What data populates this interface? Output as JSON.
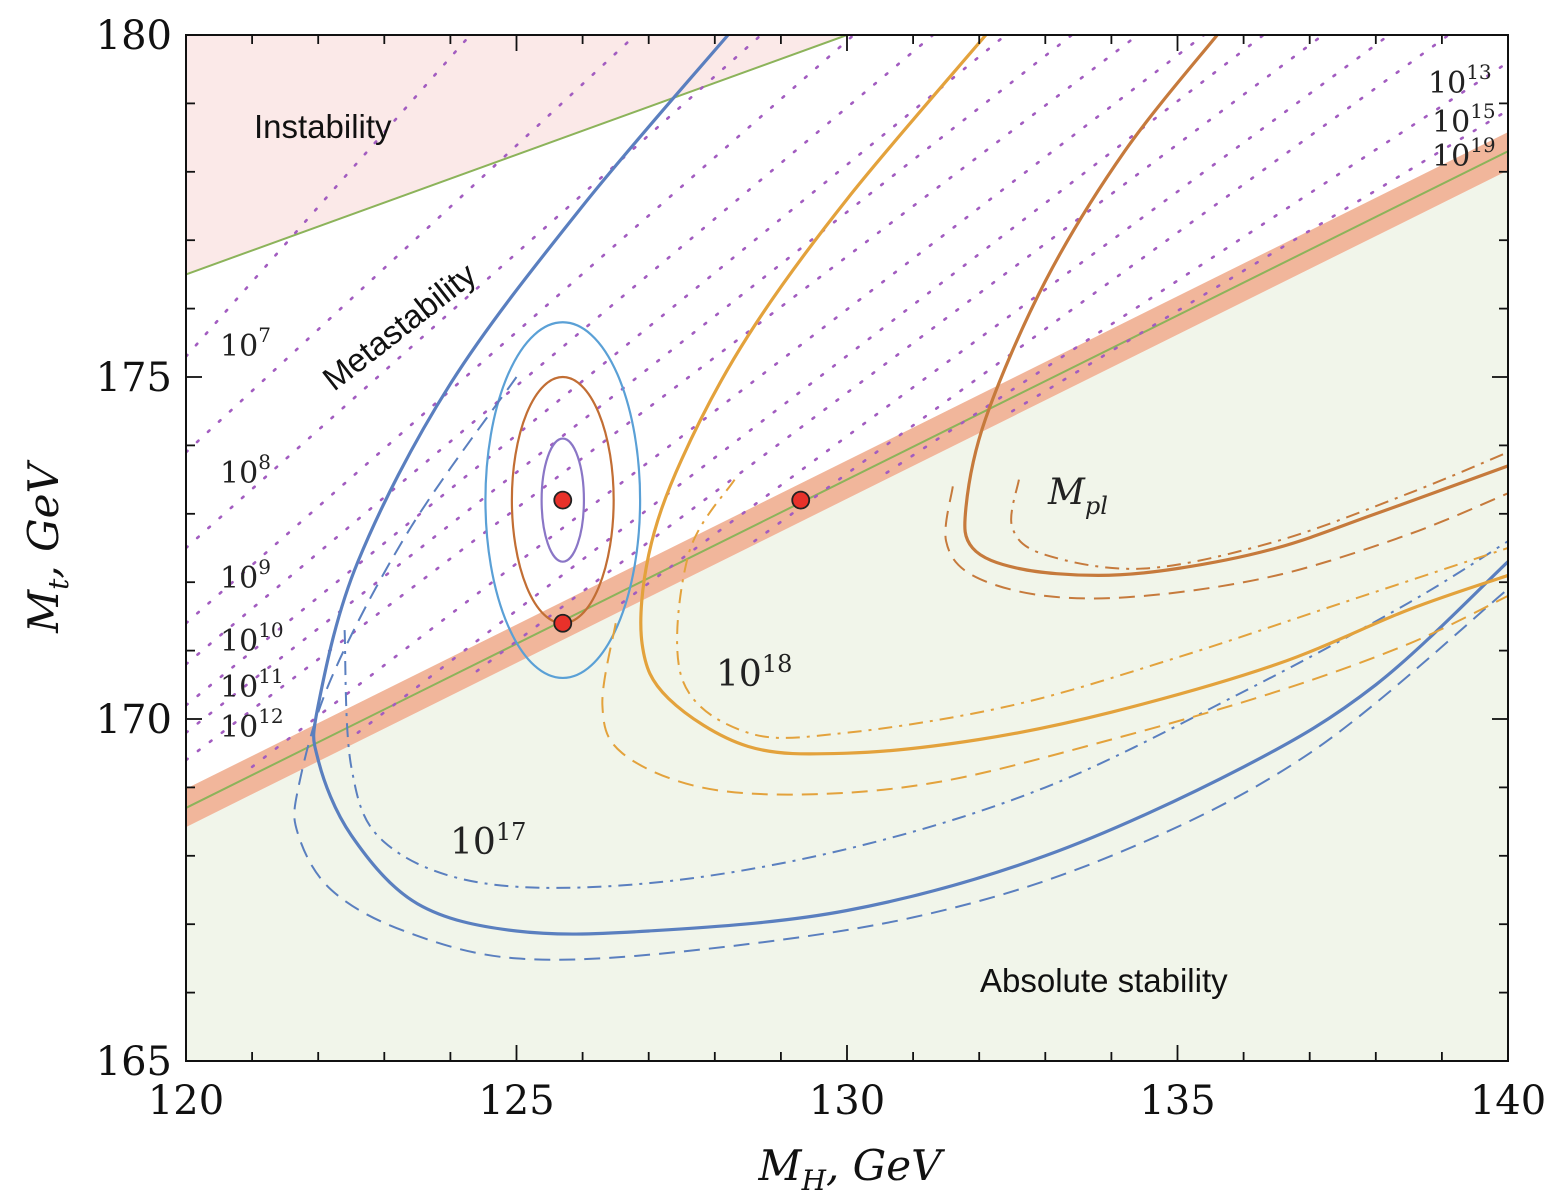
{
  "chart_data": {
    "type": "line",
    "title": "",
    "xlabel": "M_H, GeV",
    "ylabel": "M_t, GeV",
    "xlim": [
      120,
      140
    ],
    "ylim": [
      165,
      180
    ],
    "x_ticks": [
      "120",
      "125",
      "130",
      "135",
      "140"
    ],
    "y_ticks": [
      "165",
      "170",
      "175",
      "180"
    ],
    "grid": false,
    "colors": {
      "instability": "#fbe9e8",
      "stability": "#f1f5ea",
      "band": "#efa98a",
      "green": "#8cb35a",
      "purple": "#a25cc0",
      "blue": "#5a7fbf",
      "gold": "#e3a23c",
      "brown": "#c67a3c",
      "red_point": "#e8312a",
      "ellipse_outer": "#5aa0d6",
      "ellipse_middle": "#c26e34",
      "ellipse_inner": "#8a76c6"
    },
    "regions": {
      "instability": "Instability",
      "metastability": "Metastability",
      "stability": "Absolute stability"
    },
    "instability_boundary": {
      "x": [
        120,
        130
      ],
      "y": [
        176.5,
        180
      ]
    },
    "stability_band": {
      "x": [
        120,
        140
      ],
      "y": [
        168.7,
        178.3
      ],
      "half_width": 0.28
    },
    "scale_lines": [
      {
        "label": "10",
        "exp": "7",
        "x": [
          120,
          124.3
        ],
        "y": [
          175.3,
          180
        ]
      },
      {
        "label": "10",
        "exp": "8",
        "x": [
          120,
          126.8
        ],
        "y": [
          173.9,
          180
        ]
      },
      {
        "label": "10",
        "exp": "9",
        "x": [
          120,
          128.7
        ],
        "y": [
          172.5,
          180
        ]
      },
      {
        "label": "10",
        "exp": "10",
        "x": [
          120,
          130.1
        ],
        "y": [
          171.4,
          180
        ]
      },
      {
        "label": "10",
        "exp": "11",
        "x": [
          120,
          131.3
        ],
        "y": [
          170.8,
          180
        ]
      },
      {
        "label": "10",
        "exp": "12",
        "x": [
          120,
          132.4
        ],
        "y": [
          170.2,
          180
        ]
      },
      {
        "label": "",
        "exp": "",
        "x": [
          120,
          133.4
        ],
        "y": [
          169.8,
          180
        ]
      },
      {
        "label": "",
        "exp": "",
        "x": [
          120,
          134.4
        ],
        "y": [
          169.4,
          180
        ]
      },
      {
        "label": "",
        "exp": "",
        "x": [
          121,
          135.4
        ],
        "y": [
          169.3,
          180
        ]
      },
      {
        "label": "",
        "exp": "",
        "x": [
          122.6,
          136.3
        ],
        "y": [
          169.8,
          180
        ]
      },
      {
        "label": "",
        "exp": "",
        "x": [
          124.4,
          137.2
        ],
        "y": [
          170.7,
          180
        ]
      },
      {
        "label": "",
        "exp": "",
        "x": [
          126.6,
          138.2
        ],
        "y": [
          171.7,
          180
        ]
      },
      {
        "label": "",
        "exp": "",
        "x": [
          128.6,
          139.1
        ],
        "y": [
          172.6,
          180
        ]
      },
      {
        "label": "",
        "exp": "",
        "x": [
          130.6,
          140
        ],
        "y": [
          173.6,
          179.6
        ]
      },
      {
        "label": "",
        "exp": "",
        "x": [
          132.5,
          140
        ],
        "y": [
          174.5,
          178.9
        ]
      }
    ],
    "right_scale_labels": [
      {
        "label": "10",
        "exp": "13"
      },
      {
        "label": "10",
        "exp": "15"
      },
      {
        "label": "10",
        "exp": "19"
      }
    ],
    "series": [
      {
        "name": "10^17",
        "color": "blue",
        "label": "10",
        "label_exp": "17",
        "solid": {
          "x": [
            128.2,
            126.0,
            124.0,
            122.6,
            122.0,
            122.0,
            122.5,
            123.5,
            125.0,
            127.0,
            130.0,
            133.0,
            136.0,
            138.0,
            140.0
          ],
          "y": [
            180.0,
            177.5,
            174.9,
            172.3,
            170.2,
            169.4,
            168.3,
            167.3,
            166.9,
            166.9,
            167.2,
            168.0,
            169.3,
            170.5,
            172.3
          ]
        },
        "dashed": {
          "x": [
            125.0,
            123.4,
            122.2,
            121.7,
            121.7,
            122.2,
            123.3,
            125.0,
            127.5,
            131.0,
            134.0,
            137.0,
            140.0
          ],
          "y": [
            175.0,
            172.8,
            170.6,
            169.0,
            168.3,
            167.5,
            166.9,
            166.5,
            166.6,
            167.1,
            168.0,
            169.5,
            171.9
          ]
        },
        "dashdot": {
          "x": [
            122.4,
            122.5,
            123.0,
            124.5,
            127.0,
            130.0,
            133.0,
            136.0,
            138.5,
            140.0
          ],
          "y": [
            171.3,
            169.3,
            168.2,
            167.6,
            167.6,
            168.1,
            169.0,
            170.4,
            171.7,
            172.6
          ]
        }
      },
      {
        "name": "10^18",
        "color": "gold",
        "label": "10",
        "label_exp": "18",
        "solid": {
          "x": [
            132.1,
            130.0,
            128.5,
            127.5,
            127.0,
            126.9,
            127.3,
            128.5,
            130.0,
            132.0,
            134.0,
            136.5,
            138.5,
            140.0
          ],
          "y": [
            180.0,
            177.6,
            175.6,
            173.8,
            172.4,
            171.1,
            170.3,
            169.6,
            169.5,
            169.7,
            170.1,
            170.8,
            171.6,
            172.1
          ]
        },
        "dashed": {
          "x": [
            126.5,
            126.3,
            126.6,
            127.8,
            129.5,
            131.5,
            134.0,
            136.5,
            138.5,
            140.0
          ],
          "y": [
            171.4,
            170.2,
            169.5,
            169.0,
            168.9,
            169.1,
            169.7,
            170.4,
            171.1,
            171.8
          ]
        },
        "dashdot": {
          "x": [
            128.3,
            127.6,
            127.5,
            128.5,
            130.0,
            132.5,
            135.0,
            137.5,
            140.0
          ],
          "y": [
            173.5,
            172.4,
            170.6,
            169.8,
            169.8,
            170.2,
            170.9,
            171.7,
            172.5
          ]
        }
      },
      {
        "name": "M_pl",
        "color": "brown",
        "label": "M",
        "label_sub": "pl",
        "solid": {
          "x": [
            135.6,
            134.2,
            133.0,
            132.1,
            131.8,
            131.9,
            132.6,
            133.8,
            135.0,
            136.5,
            138.0,
            140.0
          ],
          "y": [
            180.0,
            178.3,
            176.4,
            174.4,
            173.1,
            172.5,
            172.2,
            172.1,
            172.2,
            172.5,
            173.0,
            173.7
          ]
        },
        "dashed": {
          "x": [
            131.6,
            131.5,
            131.9,
            133.0,
            134.5,
            136.5,
            138.5,
            140.0
          ],
          "y": [
            173.4,
            172.6,
            172.1,
            171.8,
            171.8,
            172.1,
            172.7,
            173.3
          ]
        },
        "dashdot": {
          "x": [
            132.6,
            132.5,
            133.0,
            134.5,
            136.5,
            138.5,
            140.0
          ],
          "y": [
            173.5,
            172.8,
            172.4,
            172.2,
            172.6,
            173.3,
            173.9
          ]
        }
      }
    ],
    "ellipses": [
      {
        "name": "outer",
        "color": "ellipse_outer",
        "cx": 125.7,
        "cy": 173.2,
        "rx": 1.17,
        "ry": 2.6
      },
      {
        "name": "middle",
        "color": "ellipse_middle",
        "cx": 125.7,
        "cy": 173.2,
        "rx": 0.77,
        "ry": 1.8
      },
      {
        "name": "inner",
        "color": "ellipse_inner",
        "cx": 125.7,
        "cy": 173.2,
        "rx": 0.32,
        "ry": 0.9
      }
    ],
    "points": [
      {
        "x": 125.7,
        "y": 173.2
      },
      {
        "x": 125.7,
        "y": 171.4
      },
      {
        "x": 129.3,
        "y": 173.2
      }
    ]
  }
}
